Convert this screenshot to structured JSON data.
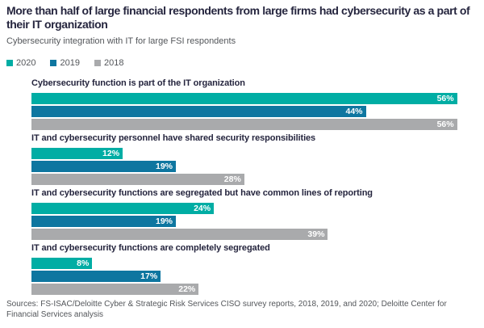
{
  "header": {
    "title": "More than half of large financial respondents from large firms had cybersecurity as a part of their IT organization",
    "subtitle": "Cybersecurity integration with IT for large FSI respondents"
  },
  "chart_data": {
    "type": "bar",
    "orientation": "horizontal",
    "title": "Cybersecurity integration with IT for large FSI respondents",
    "categories": [
      "Cybersecurity function is part of the IT organization",
      "IT and cybersecurity personnel have shared security responsibilities",
      "IT and cybersecurity functions are segregated but have common lines of reporting",
      "IT and cybersecurity functions are completely segregated"
    ],
    "series": [
      {
        "name": "2020",
        "color": "#00ADA4",
        "values": [
          56,
          12,
          24,
          8
        ]
      },
      {
        "name": "2019",
        "color": "#0E76A0",
        "values": [
          44,
          19,
          19,
          17
        ]
      },
      {
        "name": "2018",
        "color": "#A9AAAC",
        "values": [
          56,
          28,
          39,
          22
        ]
      }
    ],
    "unit": "%",
    "xlim": [
      0,
      57
    ],
    "grid": false,
    "legend_position": "top",
    "value_labels": "inside-end"
  },
  "footer": {
    "sources": "Sources: FS-ISAC/Deloitte Cyber & Strategic Risk Services CISO survey reports, 2018, 2019, and 2020; Deloitte Center for Financial Services analysis"
  },
  "colors": {
    "title_text": "#25253E",
    "secondary_text": "#53565A",
    "bar_2020": "#00ADA4",
    "bar_2019": "#0E76A0",
    "bar_2018": "#A9AAAC",
    "value_label_text": "#FFFFFF"
  }
}
